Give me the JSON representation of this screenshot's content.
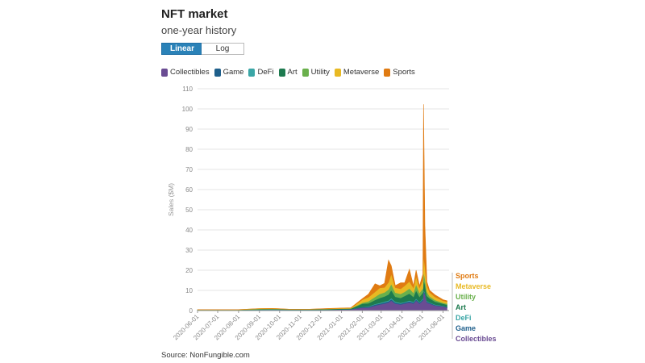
{
  "header": {
    "title": "NFT market",
    "subtitle": "one-year history"
  },
  "scale_toggle": {
    "options": [
      "Linear",
      "Log"
    ],
    "selected": "Linear"
  },
  "legend": [
    {
      "name": "Collectibles",
      "color": "#6a4c93"
    },
    {
      "name": "Game",
      "color": "#1f5f8b"
    },
    {
      "name": "DeFi",
      "color": "#3aa6a6"
    },
    {
      "name": "Art",
      "color": "#1d7a4f"
    },
    {
      "name": "Utility",
      "color": "#6ab04c"
    },
    {
      "name": "Metaverse",
      "color": "#e8b923"
    },
    {
      "name": "Sports",
      "color": "#e07b12"
    }
  ],
  "end_labels": [
    "Sports",
    "Metaverse",
    "Utility",
    "Art",
    "DeFi",
    "Game",
    "Collectibles"
  ],
  "source": "Source: NonFungible.com",
  "chart_data": {
    "type": "area",
    "stacked": true,
    "ylabel": "Sales ($M)",
    "xlabel": "",
    "ylim": [
      0,
      110
    ],
    "yticks": [
      0,
      10,
      20,
      30,
      40,
      50,
      60,
      70,
      80,
      90,
      100,
      110
    ],
    "xticks": [
      "2020-06-01",
      "2020-07-01",
      "2020-08-01",
      "2020-09-01",
      "2020-10-01",
      "2020-11-01",
      "2020-12-01",
      "2021-01-01",
      "2021-02-01",
      "2021-03-01",
      "2021-04-01",
      "2021-05-01",
      "2021-06-01"
    ],
    "grid": true,
    "x": [
      "2020-06-01",
      "2020-07-01",
      "2020-08-01",
      "2020-09-01",
      "2020-09-20",
      "2020-10-15",
      "2020-11-15",
      "2020-12-15",
      "2021-01-15",
      "2021-02-01",
      "2021-02-10",
      "2021-02-20",
      "2021-02-27",
      "2021-03-06",
      "2021-03-12",
      "2021-03-16",
      "2021-03-22",
      "2021-03-30",
      "2021-04-05",
      "2021-04-12",
      "2021-04-18",
      "2021-04-22",
      "2021-04-27",
      "2021-05-02",
      "2021-05-03",
      "2021-05-05",
      "2021-05-08",
      "2021-05-12",
      "2021-05-20",
      "2021-06-01",
      "2021-06-07"
    ],
    "series": [
      {
        "name": "Collectibles",
        "values": [
          0.2,
          0.2,
          0.2,
          0.3,
          0.4,
          0.3,
          0.3,
          0.4,
          0.6,
          1.5,
          1.5,
          2.5,
          3.0,
          3.5,
          4.0,
          5.0,
          3.5,
          3.0,
          3.5,
          4.0,
          3.5,
          5.0,
          3.5,
          5.0,
          9.0,
          8.0,
          4.0,
          3.5,
          2.5,
          2.0,
          1.5
        ]
      },
      {
        "name": "Game",
        "values": [
          0.1,
          0.1,
          0.1,
          0.1,
          0.1,
          0.1,
          0.1,
          0.1,
          0.1,
          0.3,
          0.4,
          0.5,
          0.5,
          0.6,
          0.6,
          0.7,
          0.5,
          0.5,
          0.5,
          0.6,
          0.5,
          0.6,
          0.5,
          0.6,
          0.8,
          0.7,
          0.5,
          0.4,
          0.3,
          0.3,
          0.3
        ]
      },
      {
        "name": "DeFi",
        "values": [
          0.0,
          0.0,
          0.0,
          0.1,
          0.1,
          0.0,
          0.0,
          0.0,
          0.0,
          0.1,
          0.2,
          0.3,
          0.3,
          0.4,
          0.4,
          0.5,
          0.4,
          0.3,
          0.3,
          0.4,
          0.3,
          0.4,
          0.3,
          0.4,
          0.5,
          0.4,
          0.3,
          0.2,
          0.2,
          0.1,
          0.1
        ]
      },
      {
        "name": "Art",
        "values": [
          0.1,
          0.1,
          0.1,
          0.2,
          0.2,
          0.2,
          0.2,
          0.3,
          0.3,
          1.5,
          1.5,
          2.0,
          2.5,
          2.5,
          3.0,
          4.0,
          2.5,
          2.5,
          3.0,
          3.5,
          2.5,
          4.0,
          2.5,
          3.0,
          5.0,
          4.0,
          2.5,
          2.0,
          1.5,
          1.0,
          1.0
        ]
      },
      {
        "name": "Utility",
        "values": [
          0.0,
          0.0,
          0.0,
          0.1,
          0.1,
          0.0,
          0.0,
          0.0,
          0.1,
          0.5,
          1.0,
          1.5,
          2.0,
          2.0,
          2.5,
          3.0,
          2.0,
          2.0,
          2.0,
          2.5,
          2.0,
          3.0,
          2.0,
          2.0,
          4.0,
          3.0,
          2.0,
          1.0,
          0.8,
          0.5,
          0.5
        ]
      },
      {
        "name": "Metaverse",
        "values": [
          0.1,
          0.1,
          0.1,
          0.2,
          0.2,
          0.1,
          0.1,
          0.2,
          0.2,
          1.5,
          2.0,
          2.5,
          3.0,
          2.5,
          3.5,
          5.0,
          2.5,
          2.5,
          3.0,
          3.5,
          2.5,
          4.0,
          2.5,
          4.0,
          8.0,
          6.0,
          3.0,
          2.0,
          1.5,
          1.0,
          1.0
        ]
      },
      {
        "name": "Sports",
        "values": [
          0.0,
          0.0,
          0.0,
          0.0,
          0.0,
          0.0,
          0.0,
          0.1,
          0.1,
          0.5,
          1.5,
          4.0,
          1.0,
          2.0,
          11.0,
          4.0,
          1.0,
          3.0,
          1.5,
          6.0,
          1.0,
          3.0,
          1.0,
          3.0,
          75.0,
          20.0,
          2.0,
          1.0,
          1.0,
          0.5,
          0.5
        ]
      }
    ]
  }
}
